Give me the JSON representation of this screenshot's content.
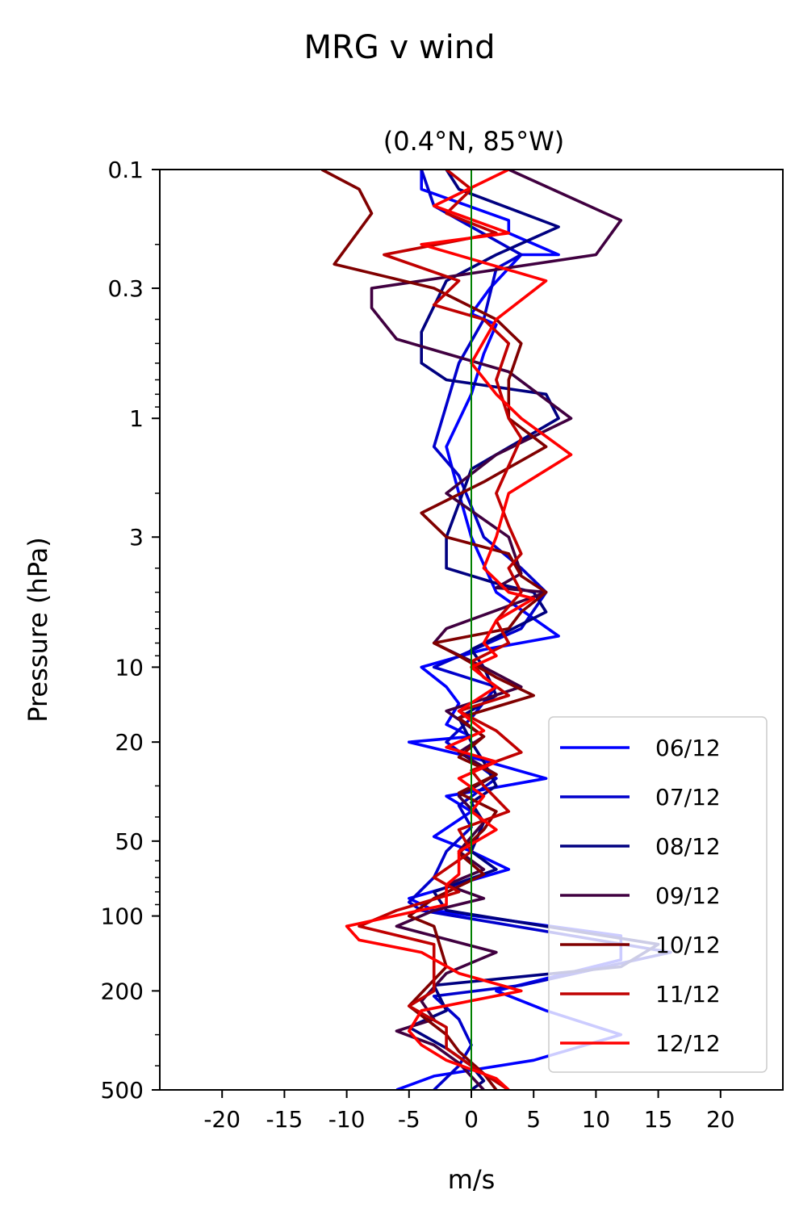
{
  "chart_data": {
    "type": "line",
    "title": "MRG v wind",
    "subtitle": "(0.4°N, 85°W)",
    "xlabel": "m/s",
    "ylabel": "Pressure (hPa)",
    "xlim": [
      -25,
      25
    ],
    "ylim": [
      500,
      0.1
    ],
    "yscale": "log",
    "x_ticks": [
      -20,
      -15,
      -10,
      -5,
      0,
      5,
      10,
      15,
      20
    ],
    "x_tick_labels": [
      "-20",
      "-15",
      "-10",
      "-5",
      "0",
      "5",
      "10",
      "15",
      "20"
    ],
    "y_ticks": [
      0.1,
      0.3,
      1,
      3,
      10,
      20,
      50,
      100,
      200,
      500
    ],
    "y_tick_labels": [
      "0.1",
      "0.3",
      "1",
      "3",
      "10",
      "20",
      "50",
      "100",
      "200",
      "500"
    ],
    "zero_line_color": "#008000",
    "legend_position": "lower right",
    "grid": false,
    "series": [
      {
        "name": "06/12",
        "color": "#0000ff",
        "points": [
          [
            -4,
            0.1
          ],
          [
            -4,
            0.12
          ],
          [
            3,
            0.16
          ],
          [
            3,
            0.18
          ],
          [
            7,
            0.22
          ],
          [
            4,
            0.22
          ],
          [
            1.5,
            0.3
          ],
          [
            0,
            0.38
          ],
          [
            2,
            0.42
          ],
          [
            1,
            0.55
          ],
          [
            0,
            0.8
          ],
          [
            -2,
            1.3
          ],
          [
            -1,
            2
          ],
          [
            0,
            3
          ],
          [
            2,
            5
          ],
          [
            7,
            7.5
          ],
          [
            1,
            8.5
          ],
          [
            -4,
            10
          ],
          [
            -2,
            12
          ],
          [
            -1,
            14
          ],
          [
            -2,
            17
          ],
          [
            0,
            19
          ],
          [
            -5,
            20
          ],
          [
            0,
            23
          ],
          [
            6,
            28
          ],
          [
            -2,
            33
          ],
          [
            0,
            38
          ],
          [
            -3,
            48
          ],
          [
            0,
            55
          ],
          [
            3,
            65
          ],
          [
            -5,
            85
          ],
          [
            -3,
            95
          ],
          [
            12,
            120
          ],
          [
            12,
            150
          ],
          [
            2,
            200
          ],
          [
            6,
            240
          ],
          [
            12,
            300
          ],
          [
            5,
            380
          ],
          [
            -3,
            440
          ],
          [
            -6,
            500
          ]
        ]
      },
      {
        "name": "07/12",
        "color": "#0000cc",
        "points": [
          [
            -4,
            0.1
          ],
          [
            -3,
            0.14
          ],
          [
            4,
            0.22
          ],
          [
            2,
            0.25
          ],
          [
            1,
            0.4
          ],
          [
            -1,
            0.6
          ],
          [
            -3,
            1.3
          ],
          [
            -1,
            1.7
          ],
          [
            1,
            3
          ],
          [
            4,
            4
          ],
          [
            6,
            5
          ],
          [
            4,
            7
          ],
          [
            -3,
            10
          ],
          [
            2,
            12
          ],
          [
            0,
            16
          ],
          [
            -2,
            20
          ],
          [
            2,
            28
          ],
          [
            -1,
            36
          ],
          [
            0,
            44
          ],
          [
            -2,
            55
          ],
          [
            -3,
            70
          ],
          [
            -5,
            88
          ],
          [
            -4,
            95
          ],
          [
            16,
            140
          ],
          [
            4,
            190
          ],
          [
            -3,
            210
          ],
          [
            -1,
            260
          ],
          [
            0,
            330
          ],
          [
            -1,
            400
          ],
          [
            -3,
            500
          ]
        ]
      },
      {
        "name": "08/12",
        "color": "#000080",
        "points": [
          [
            -2,
            0.1
          ],
          [
            -1,
            0.12
          ],
          [
            7,
            0.17
          ],
          [
            2,
            0.22
          ],
          [
            -2,
            0.28
          ],
          [
            -4,
            0.45
          ],
          [
            -4,
            0.6
          ],
          [
            -2,
            0.7
          ],
          [
            6,
            0.8
          ],
          [
            7,
            1.0
          ],
          [
            0,
            1.6
          ],
          [
            -1,
            2.2
          ],
          [
            -2,
            3
          ],
          [
            -2,
            4
          ],
          [
            2,
            4.6
          ],
          [
            5,
            5
          ],
          [
            6,
            6
          ],
          [
            0,
            8.5
          ],
          [
            1,
            10
          ],
          [
            2,
            13
          ],
          [
            -1,
            16
          ],
          [
            0,
            20
          ],
          [
            1,
            24
          ],
          [
            2,
            30
          ],
          [
            0,
            35
          ],
          [
            1,
            42
          ],
          [
            0,
            55
          ],
          [
            2,
            65
          ],
          [
            -3,
            80
          ],
          [
            -2,
            95
          ],
          [
            15,
            130
          ],
          [
            12,
            160
          ],
          [
            -3,
            190
          ],
          [
            -2,
            240
          ],
          [
            -5,
            280
          ],
          [
            -2,
            340
          ],
          [
            0,
            400
          ],
          [
            1,
            460
          ],
          [
            0,
            500
          ]
        ]
      },
      {
        "name": "09/12",
        "color": "#400040",
        "points": [
          [
            3,
            0.1
          ],
          [
            12,
            0.16
          ],
          [
            10,
            0.22
          ],
          [
            -8,
            0.3
          ],
          [
            -8,
            0.36
          ],
          [
            -6,
            0.48
          ],
          [
            3,
            0.65
          ],
          [
            8,
            1.0
          ],
          [
            2,
            1.4
          ],
          [
            -2,
            2.0
          ],
          [
            3,
            3
          ],
          [
            4,
            4.2
          ],
          [
            2,
            4.8
          ],
          [
            6,
            5
          ],
          [
            -2,
            7
          ],
          [
            -3,
            8
          ],
          [
            1,
            10
          ],
          [
            4,
            12
          ],
          [
            -2,
            15
          ],
          [
            1,
            19
          ],
          [
            -1,
            22
          ],
          [
            2,
            27
          ],
          [
            -1,
            33
          ],
          [
            1,
            42
          ],
          [
            -1,
            55
          ],
          [
            1,
            65
          ],
          [
            -2,
            75
          ],
          [
            1,
            85
          ],
          [
            -3,
            95
          ],
          [
            -6,
            110
          ],
          [
            2,
            140
          ],
          [
            -2,
            170
          ],
          [
            -4,
            220
          ],
          [
            -3,
            260
          ],
          [
            -6,
            290
          ],
          [
            -3,
            330
          ],
          [
            -1,
            390
          ],
          [
            1,
            500
          ]
        ]
      },
      {
        "name": "10/12",
        "color": "#800000",
        "points": [
          [
            -12,
            0.1
          ],
          [
            -9,
            0.12
          ],
          [
            -8,
            0.15
          ],
          [
            -11,
            0.24
          ],
          [
            -3,
            0.3
          ],
          [
            2,
            0.4
          ],
          [
            4,
            0.5
          ],
          [
            3,
            0.7
          ],
          [
            3,
            1.0
          ],
          [
            6,
            1.3
          ],
          [
            1,
            1.8
          ],
          [
            -4,
            2.4
          ],
          [
            -2,
            3
          ],
          [
            3,
            3.5
          ],
          [
            4,
            4.3
          ],
          [
            6,
            5
          ],
          [
            4,
            6
          ],
          [
            3,
            7
          ],
          [
            -3,
            8
          ],
          [
            -1,
            9
          ],
          [
            2,
            11
          ],
          [
            5,
            13
          ],
          [
            -1,
            16
          ],
          [
            1,
            19
          ],
          [
            -1,
            23
          ],
          [
            2,
            27
          ],
          [
            -1,
            32
          ],
          [
            2,
            38
          ],
          [
            1,
            45
          ],
          [
            -1,
            56
          ],
          [
            1,
            68
          ],
          [
            -3,
            85
          ],
          [
            -5,
            100
          ],
          [
            -3,
            110
          ],
          [
            -2,
            160
          ],
          [
            -5,
            230
          ],
          [
            -2,
            300
          ],
          [
            -1,
            350
          ],
          [
            1,
            430
          ],
          [
            2,
            500
          ]
        ]
      },
      {
        "name": "11/12",
        "color": "#c00000",
        "points": [
          [
            -2,
            0.1
          ],
          [
            0,
            0.12
          ],
          [
            -2,
            0.15
          ],
          [
            2,
            0.18
          ],
          [
            -7,
            0.22
          ],
          [
            -1,
            0.28
          ],
          [
            -3,
            0.35
          ],
          [
            1,
            0.4
          ],
          [
            3,
            0.5
          ],
          [
            2,
            0.7
          ],
          [
            3,
            1.0
          ],
          [
            4,
            1.2
          ],
          [
            2,
            2.0
          ],
          [
            3,
            2.7
          ],
          [
            4,
            3.5
          ],
          [
            3,
            4
          ],
          [
            4,
            5
          ],
          [
            2,
            6.5
          ],
          [
            3,
            8
          ],
          [
            0,
            9.5
          ],
          [
            1,
            11
          ],
          [
            3,
            13
          ],
          [
            -1,
            15
          ],
          [
            2,
            18
          ],
          [
            4,
            22
          ],
          [
            0,
            26
          ],
          [
            1,
            30
          ],
          [
            3,
            38
          ],
          [
            -1,
            45
          ],
          [
            0,
            55
          ],
          [
            -3,
            70
          ],
          [
            -1,
            80
          ],
          [
            -6,
            95
          ],
          [
            -9,
            110
          ],
          [
            -3,
            130
          ],
          [
            -3,
            200
          ],
          [
            -5,
            230
          ],
          [
            -2,
            280
          ],
          [
            -2,
            340
          ],
          [
            0,
            400
          ],
          [
            3,
            500
          ]
        ]
      },
      {
        "name": "12/12",
        "color": "#ff0000",
        "points": [
          [
            3,
            0.1
          ],
          [
            -3,
            0.14
          ],
          [
            3,
            0.18
          ],
          [
            -4,
            0.2
          ],
          [
            6,
            0.28
          ],
          [
            2,
            0.4
          ],
          [
            0,
            0.6
          ],
          [
            2,
            0.8
          ],
          [
            4,
            1.0
          ],
          [
            8,
            1.4
          ],
          [
            3,
            2
          ],
          [
            2,
            3
          ],
          [
            1,
            4
          ],
          [
            3,
            5
          ],
          [
            5,
            5.3
          ],
          [
            2,
            6.5
          ],
          [
            1,
            8
          ],
          [
            2,
            9
          ],
          [
            0,
            10
          ],
          [
            2,
            12
          ],
          [
            -1,
            15
          ],
          [
            1,
            18
          ],
          [
            -2,
            21
          ],
          [
            2,
            24
          ],
          [
            -1,
            28
          ],
          [
            1,
            33
          ],
          [
            0,
            38
          ],
          [
            2,
            45
          ],
          [
            -1,
            55
          ],
          [
            -1,
            68
          ],
          [
            -2,
            75
          ],
          [
            -2,
            90
          ],
          [
            -10,
            110
          ],
          [
            -9,
            125
          ],
          [
            -4,
            140
          ],
          [
            -1,
            170
          ],
          [
            4,
            200
          ],
          [
            -4,
            240
          ],
          [
            -5,
            290
          ],
          [
            -4,
            330
          ],
          [
            -2,
            380
          ],
          [
            2,
            450
          ],
          [
            3,
            500
          ]
        ]
      }
    ]
  }
}
